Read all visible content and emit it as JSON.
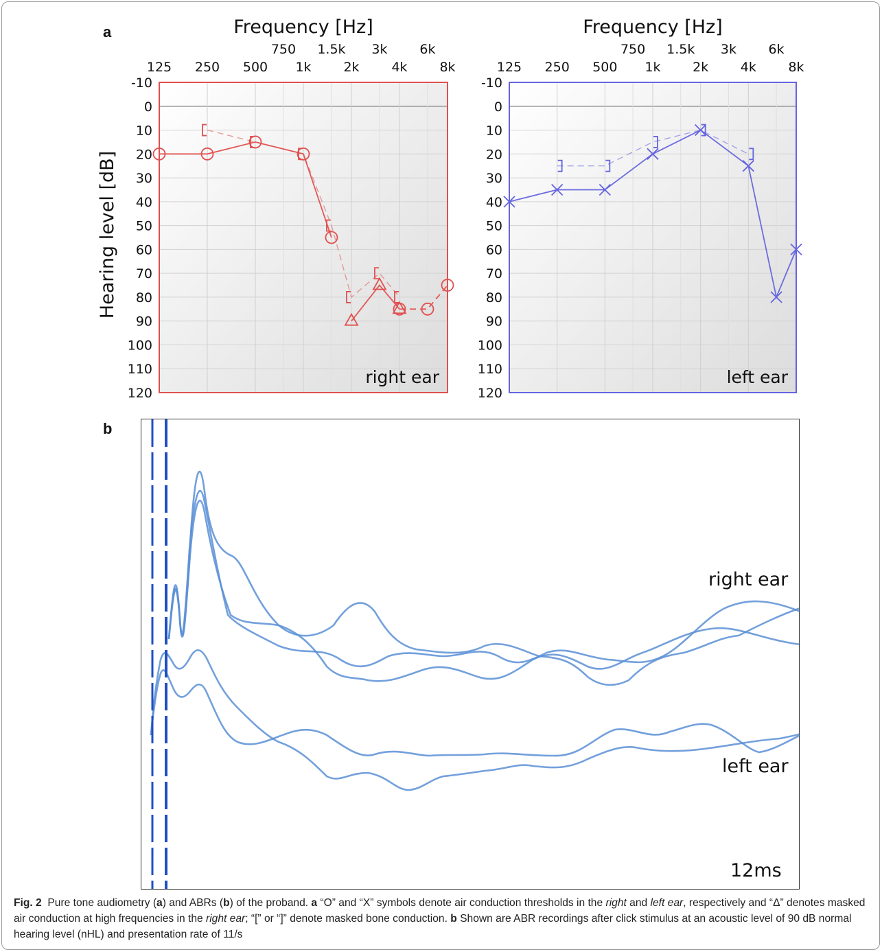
{
  "panel_labels": {
    "a": "a",
    "b": "b"
  },
  "chart_data": [
    {
      "type": "line",
      "panel": "right ear",
      "title": "Frequency [Hz]",
      "ylabel": "Hearing level [dB]",
      "corner_label": "right ear",
      "color": "#e0504f",
      "x_ticks_major": [
        "125",
        "250",
        "500",
        "1k",
        "2k",
        "4k",
        "8k"
      ],
      "x_ticks_minor": [
        "750",
        "1.5k",
        "3k",
        "6k"
      ],
      "y_ticks": [
        -10,
        0,
        10,
        20,
        30,
        40,
        50,
        60,
        70,
        80,
        90,
        100,
        110,
        120
      ],
      "ylim": [
        -10,
        120
      ],
      "y_inverted": true,
      "x_scale": "log2",
      "xlim": [
        125,
        8000
      ],
      "grid": true,
      "series": [
        {
          "name": "air conduction",
          "symbol": "O",
          "style": "solid",
          "x": [
            125,
            250,
            500,
            1000,
            1500
          ],
          "y": [
            20,
            20,
            15,
            20,
            55
          ]
        },
        {
          "name": "masked air conduction",
          "symbol": "Δ",
          "style": "solid",
          "x": [
            2000,
            3000,
            4000
          ],
          "y": [
            90,
            75,
            85
          ]
        },
        {
          "name": "air conduction",
          "symbol": "O",
          "style": "dashed",
          "x": [
            4000,
            6000,
            8000
          ],
          "y": [
            85,
            85,
            75
          ]
        },
        {
          "name": "masked bone conduction",
          "symbol": "[",
          "style": "dashed",
          "x": [
            250,
            500,
            1000,
            1500,
            2000,
            3000,
            4000
          ],
          "y": [
            10,
            15,
            20,
            50,
            80,
            70,
            80
          ]
        }
      ]
    },
    {
      "type": "line",
      "panel": "left ear",
      "title": "Frequency [Hz]",
      "corner_label": "left ear",
      "color": "#6464e0",
      "x_ticks_major": [
        "125",
        "250",
        "500",
        "1k",
        "2k",
        "4k",
        "8k"
      ],
      "x_ticks_minor": [
        "750",
        "1.5k",
        "3k",
        "6k"
      ],
      "y_ticks": [
        -10,
        0,
        10,
        20,
        30,
        40,
        50,
        60,
        70,
        80,
        90,
        100,
        110,
        120
      ],
      "ylim": [
        -10,
        120
      ],
      "y_inverted": true,
      "x_scale": "log2",
      "xlim": [
        125,
        8000
      ],
      "grid": true,
      "series": [
        {
          "name": "air conduction",
          "symbol": "X",
          "style": "solid",
          "x": [
            125,
            250,
            500,
            1000,
            2000,
            4000,
            6000,
            8000
          ],
          "y": [
            40,
            35,
            35,
            20,
            10,
            25,
            80,
            60
          ]
        },
        {
          "name": "masked bone conduction",
          "symbol": "]",
          "style": "dashed",
          "x": [
            250,
            500,
            1000,
            2000,
            4000
          ],
          "y": [
            25,
            25,
            15,
            10,
            20
          ]
        }
      ]
    }
  ],
  "abr": {
    "label_right": "right ear",
    "label_left": "left ear",
    "time_label": "12ms",
    "color": "#5b8fd6"
  },
  "caption": {
    "fig_label": "Fig. 2",
    "p1": "Pure tone audiometry (",
    "a1": "a",
    "p2": ") and ABRs (",
    "b1": "b",
    "p3": ") of the proband. ",
    "a2": "a",
    "p4": " “O” and “X” symbols denote air conduction thresholds in the ",
    "right_i": "right",
    "p5": " and ",
    "left_i": "left ear",
    "p6": ", respectively and “Δ” denotes masked air conduction at high frequencies in the ",
    "right_ear_i": "right ear",
    "p7": "; “[” or “]” denote masked bone conduction. ",
    "b2": "b",
    "p8": " Shown are ABR recordings after click stimulus at an acoustic level of 90 dB normal hearing level (nHL) and presentation rate of 11/s"
  }
}
